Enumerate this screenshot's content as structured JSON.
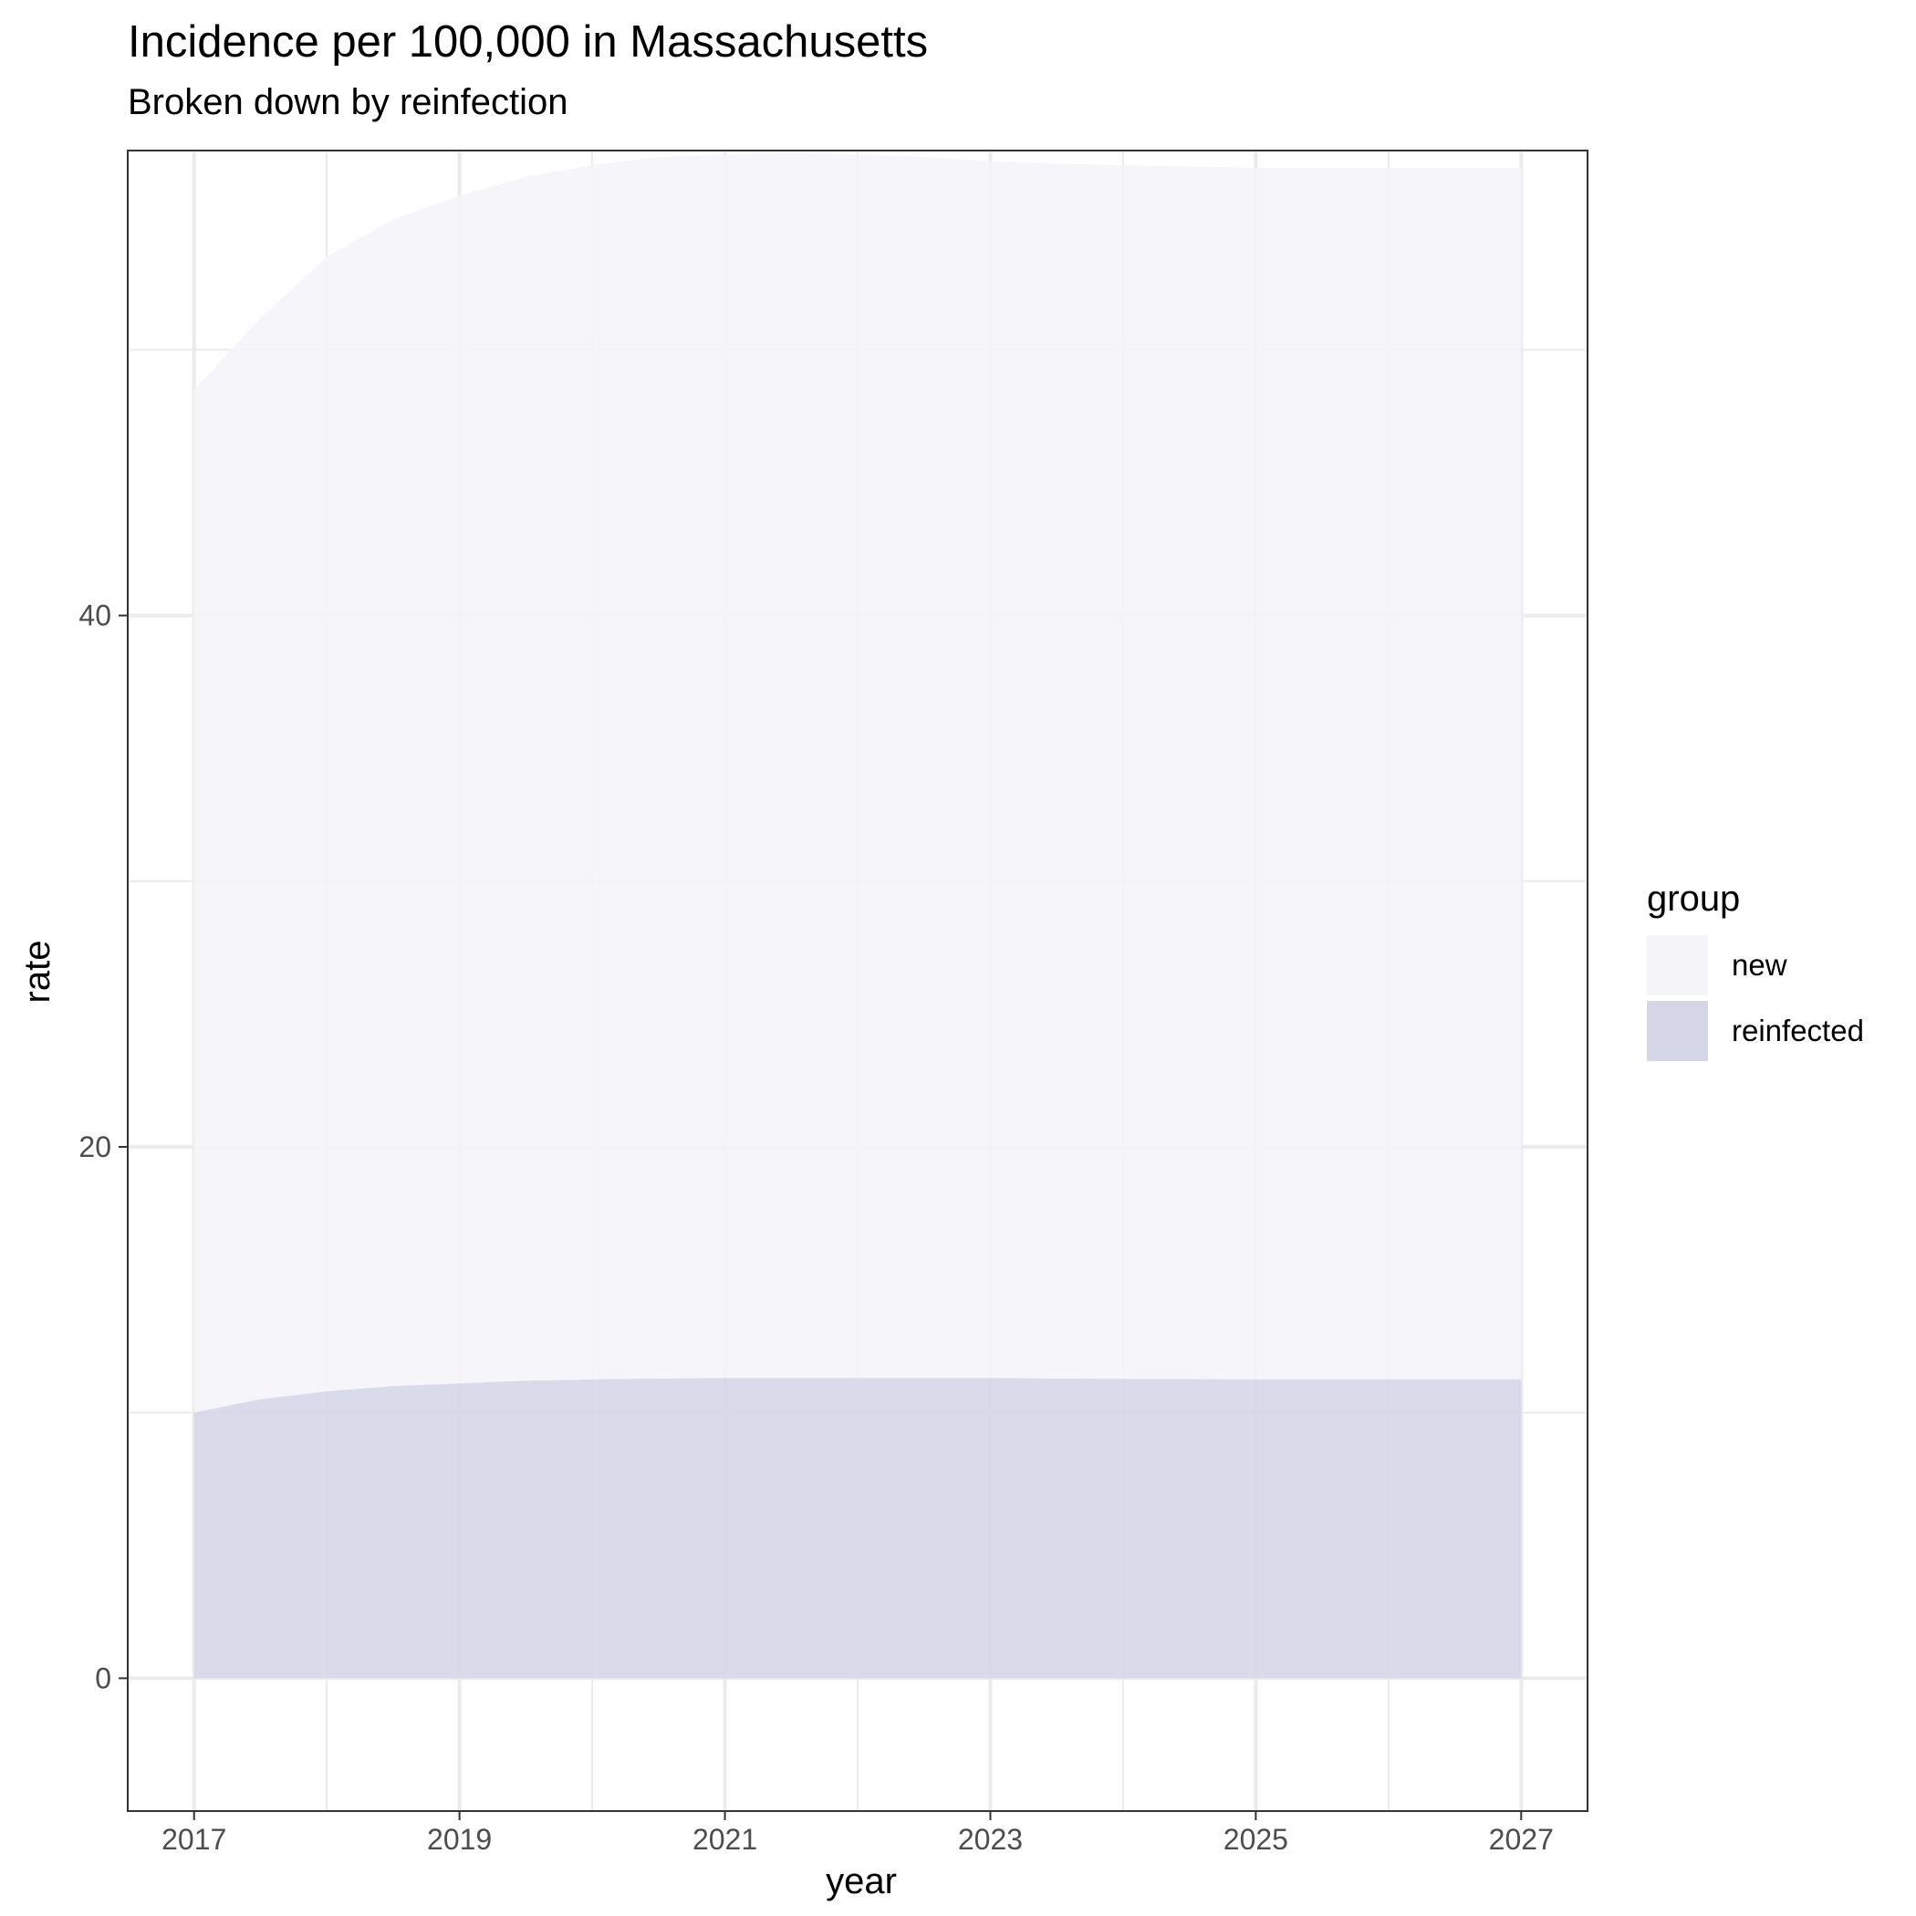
{
  "title": "Incidence per 100,000 in Massachusetts",
  "subtitle": "Broken down by reinfection",
  "chart_data": {
    "type": "area",
    "stacked": true,
    "xlabel": "year",
    "ylabel": "rate",
    "xlim": [
      2016.5,
      2027.5
    ],
    "ylim": [
      -5.0,
      57.5
    ],
    "x_ticks": [
      2017,
      2019,
      2021,
      2023,
      2025,
      2027
    ],
    "y_ticks": [
      0,
      20,
      40
    ],
    "grid": true,
    "legend": {
      "title": "group",
      "placement": "right",
      "entries": [
        "new",
        "reinfected"
      ]
    },
    "x": [
      2017,
      2017.5,
      2018,
      2018.5,
      2019,
      2019.5,
      2020,
      2020.5,
      2021,
      2021.5,
      2022,
      2022.5,
      2023,
      2023.5,
      2024,
      2024.5,
      2025,
      2025.5,
      2026,
      2026.5,
      2027
    ],
    "series": [
      {
        "name": "reinfected",
        "color": "#d5d6e8",
        "values": [
          10.0,
          10.5,
          10.8,
          11.0,
          11.1,
          11.2,
          11.25,
          11.28,
          11.3,
          11.3,
          11.3,
          11.3,
          11.3,
          11.28,
          11.27,
          11.26,
          11.25,
          11.25,
          11.25,
          11.25,
          11.25
        ]
      },
      {
        "name": "new",
        "color": "#f4f4f9",
        "values": [
          38.5,
          40.7,
          42.7,
          43.9,
          44.7,
          45.3,
          45.7,
          45.97,
          46.05,
          46.1,
          46.05,
          45.95,
          45.8,
          45.72,
          45.68,
          45.64,
          45.6,
          45.6,
          45.6,
          45.6,
          45.6
        ]
      }
    ]
  }
}
